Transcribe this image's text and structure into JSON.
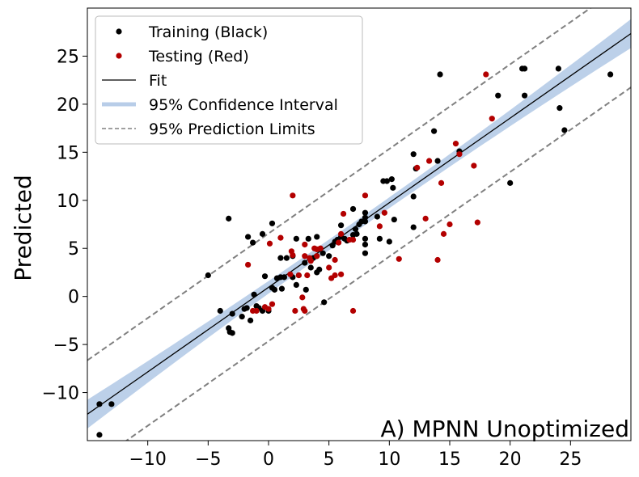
{
  "chart_data": {
    "type": "scatter",
    "title": "",
    "xlabel": "",
    "ylabel": "Predicted",
    "annotation": "A) MPNN Unoptimized",
    "xlim": [
      -15,
      30
    ],
    "ylim": [
      -15,
      30
    ],
    "xticks": [
      -10,
      -5,
      0,
      5,
      10,
      15,
      20,
      25
    ],
    "yticks": [
      -10,
      -5,
      0,
      5,
      10,
      15,
      20,
      25
    ],
    "xtick_labels": [
      "−10",
      "−5",
      "0",
      "5",
      "10",
      "15",
      "20",
      "25"
    ],
    "ytick_labels": [
      "−10",
      "−5",
      "0",
      "5",
      "10",
      "15",
      "20",
      "25"
    ],
    "grid": false,
    "legend_position": "top-left",
    "colors": {
      "training": "#000000",
      "testing": "#b30000",
      "fit": "#000000",
      "confidence": "#b8cde8",
      "prediction": "#808080"
    },
    "fit_line": {
      "slope": 0.88,
      "intercept": 0.95
    },
    "confidence_band_halfwidth": {
      "at_center": 0.55,
      "at_edges": 1.5
    },
    "prediction_offset": 5.6,
    "legend": [
      {
        "label": "Training (Black)",
        "kind": "dot",
        "color": "#000000"
      },
      {
        "label": "Testing (Red)",
        "kind": "dot",
        "color": "#b30000"
      },
      {
        "label": "Fit",
        "kind": "line",
        "color": "#000000"
      },
      {
        "label": "95% Confidence Interval",
        "kind": "band",
        "color": "#b8cde8"
      },
      {
        "label": "95% Prediction Limits",
        "kind": "dashed",
        "color": "#808080"
      }
    ],
    "series": [
      {
        "name": "Training (Black)",
        "color": "#000000",
        "points": [
          [
            -14,
            -11.2
          ],
          [
            -14,
            -14.4
          ],
          [
            -13,
            -11.2
          ],
          [
            -5,
            2.2
          ],
          [
            -4,
            -1.5
          ],
          [
            -3.3,
            8.1
          ],
          [
            -3.3,
            -3.3
          ],
          [
            -3.2,
            -3.7
          ],
          [
            -3.0,
            -3.8
          ],
          [
            -3,
            -1.8
          ],
          [
            -2.2,
            -2.1
          ],
          [
            -2,
            -1.3
          ],
          [
            -1.8,
            -1.2
          ],
          [
            -1.7,
            6.2
          ],
          [
            -1.5,
            -2.5
          ],
          [
            -1.3,
            5.6
          ],
          [
            -1.2,
            0.2
          ],
          [
            -1.0,
            -1.0
          ],
          [
            -0.8,
            -1.2
          ],
          [
            -0.5,
            6.5
          ],
          [
            -0.5,
            -1.5
          ],
          [
            -0.3,
            2.1
          ],
          [
            0,
            -1.5
          ],
          [
            0.3,
            0.9
          ],
          [
            0.3,
            7.6
          ],
          [
            0.5,
            0.7
          ],
          [
            0.7,
            1.9
          ],
          [
            1,
            2
          ],
          [
            1,
            4
          ],
          [
            1.1,
            0.8
          ],
          [
            1.3,
            2.0
          ],
          [
            1.5,
            4.0
          ],
          [
            2,
            2
          ],
          [
            2,
            4.2
          ],
          [
            2.3,
            6.0
          ],
          [
            2.3,
            1.2
          ],
          [
            2.5,
            2.2
          ],
          [
            3,
            3.5
          ],
          [
            3.1,
            0.7
          ],
          [
            3.3,
            6
          ],
          [
            3.5,
            3
          ],
          [
            3.7,
            4
          ],
          [
            4,
            4.2
          ],
          [
            4,
            6.2
          ],
          [
            4,
            2.5
          ],
          [
            4.2,
            2.8
          ],
          [
            4.5,
            4.5
          ],
          [
            4.6,
            -0.6
          ],
          [
            5,
            4.2
          ],
          [
            5.3,
            5.3
          ],
          [
            5.5,
            5.7
          ],
          [
            5.7,
            5.9
          ],
          [
            6,
            6.2
          ],
          [
            6,
            7.4
          ],
          [
            6.3,
            6.0
          ],
          [
            6.5,
            5.8
          ],
          [
            7,
            9.1
          ],
          [
            7,
            6.4
          ],
          [
            7.2,
            7
          ],
          [
            7.3,
            6.5
          ],
          [
            7.5,
            7.5
          ],
          [
            7.7,
            7.8
          ],
          [
            8,
            8.7
          ],
          [
            8,
            8.2
          ],
          [
            8,
            7.8
          ],
          [
            8,
            6
          ],
          [
            8,
            5.4
          ],
          [
            8,
            4.5
          ],
          [
            9,
            8.3
          ],
          [
            9.2,
            6
          ],
          [
            9.5,
            12
          ],
          [
            9.8,
            12
          ],
          [
            10,
            5.7
          ],
          [
            10.2,
            12.2
          ],
          [
            10.3,
            11.3
          ],
          [
            10.4,
            8
          ],
          [
            12,
            14.8
          ],
          [
            12,
            10.4
          ],
          [
            12,
            7.2
          ],
          [
            12.2,
            13.3
          ],
          [
            13.7,
            17.2
          ],
          [
            14,
            14.1
          ],
          [
            14.2,
            23.1
          ],
          [
            15.8,
            15.1
          ],
          [
            19,
            20.9
          ],
          [
            20,
            11.8
          ],
          [
            21,
            23.7
          ],
          [
            21.2,
            23.7
          ],
          [
            21.2,
            20.9
          ],
          [
            24,
            23.7
          ],
          [
            24.1,
            19.6
          ],
          [
            24.5,
            17.3
          ],
          [
            28.3,
            23.1
          ]
        ]
      },
      {
        "name": "Testing (Red)",
        "color": "#b30000",
        "points": [
          [
            -1.7,
            3.3
          ],
          [
            -1.3,
            -1.5
          ],
          [
            -1.0,
            -1.5
          ],
          [
            -0.3,
            -1.1
          ],
          [
            0,
            -1.3
          ],
          [
            0.1,
            5.5
          ],
          [
            0.3,
            -0.8
          ],
          [
            1,
            6.1
          ],
          [
            1.8,
            2.3
          ],
          [
            1.9,
            4.7
          ],
          [
            2,
            10.5
          ],
          [
            2,
            4.3
          ],
          [
            2.2,
            -1.5
          ],
          [
            2.5,
            2.2
          ],
          [
            2.8,
            -0.1
          ],
          [
            2.9,
            -1.3
          ],
          [
            3,
            5.4
          ],
          [
            3,
            4.2
          ],
          [
            3,
            -1.5
          ],
          [
            3.2,
            2.2
          ],
          [
            3.4,
            4.0
          ],
          [
            3.5,
            3.7
          ],
          [
            3.8,
            5
          ],
          [
            4,
            4.9
          ],
          [
            4,
            4.2
          ],
          [
            4.3,
            5
          ],
          [
            5,
            3.0
          ],
          [
            5.2,
            1.9
          ],
          [
            5.5,
            2.2
          ],
          [
            5.5,
            3.8
          ],
          [
            5.8,
            5.6
          ],
          [
            6,
            2.3
          ],
          [
            6,
            6.5
          ],
          [
            6.2,
            8.6
          ],
          [
            6.7,
            5.9
          ],
          [
            7,
            5.9
          ],
          [
            7,
            -1.5
          ],
          [
            8,
            10.5
          ],
          [
            9.2,
            7.3
          ],
          [
            9.6,
            8.7
          ],
          [
            10.8,
            3.9
          ],
          [
            12.3,
            13.4
          ],
          [
            13,
            8.1
          ],
          [
            13.3,
            14.1
          ],
          [
            14,
            3.8
          ],
          [
            14.3,
            11.8
          ],
          [
            14.5,
            6.5
          ],
          [
            15,
            7.5
          ],
          [
            15.5,
            15.9
          ],
          [
            15.8,
            14.8
          ],
          [
            17,
            13.6
          ],
          [
            17.3,
            7.7
          ],
          [
            18,
            23.1
          ],
          [
            18.5,
            18.5
          ]
        ]
      }
    ]
  }
}
